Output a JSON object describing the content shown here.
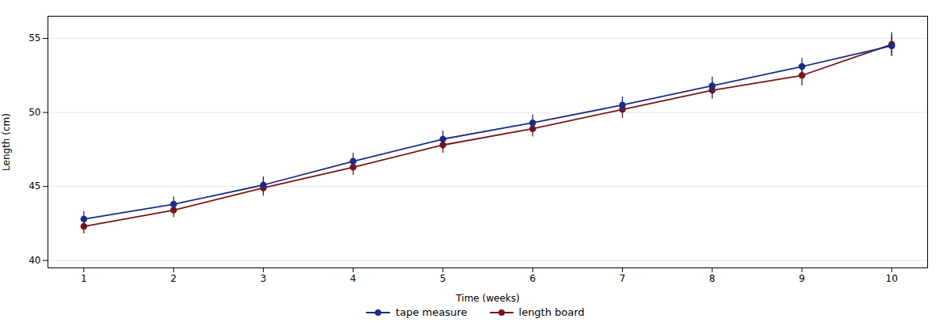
{
  "chart_data": {
    "type": "line",
    "x": [
      1,
      2,
      3,
      4,
      5,
      6,
      7,
      8,
      9,
      10
    ],
    "series": [
      {
        "name": "tape measure",
        "color": "#1a2d82",
        "marker": "circle",
        "values": [
          42.8,
          43.8,
          45.1,
          46.7,
          48.2,
          49.3,
          50.5,
          51.8,
          53.1,
          54.5
        ],
        "errors": [
          0.5,
          0.5,
          0.55,
          0.55,
          0.55,
          0.55,
          0.55,
          0.6,
          0.55,
          0.7
        ]
      },
      {
        "name": "length board",
        "color": "#7a1515",
        "marker": "circle",
        "values": [
          42.3,
          43.4,
          44.9,
          46.3,
          47.8,
          48.9,
          50.2,
          51.5,
          52.5,
          54.6
        ],
        "errors": [
          0.5,
          0.5,
          0.55,
          0.55,
          0.55,
          0.55,
          0.6,
          0.6,
          0.7,
          0.8
        ]
      }
    ],
    "xlabel": "Time (weeks)",
    "ylabel": "Length (cm)",
    "xlim": [
      0.6,
      10.4
    ],
    "ylim": [
      39.5,
      56.5
    ],
    "xticks": [
      1,
      2,
      3,
      4,
      5,
      6,
      7,
      8,
      9,
      10
    ],
    "yticks": [
      40,
      45,
      50,
      55
    ],
    "grid": "y",
    "legend": "bottom"
  }
}
